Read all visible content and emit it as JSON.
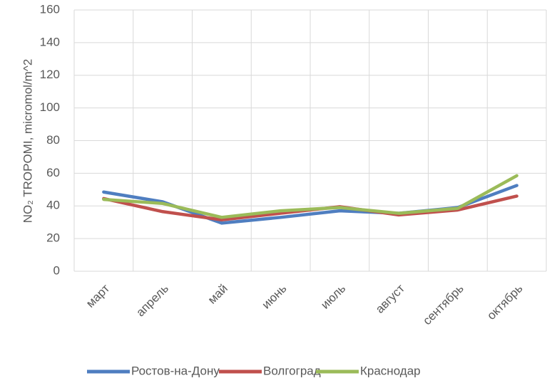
{
  "chart_data": {
    "type": "line",
    "y_label": "NO₂ TROPOMI, micromol/m^2",
    "categories": [
      "март",
      "апрель",
      "май",
      "июнь",
      "июль",
      "август",
      "сентябрь",
      "октябрь"
    ],
    "series": [
      {
        "name": "Ростов-на-Дону",
        "color": "#4f7ec0",
        "values": [
          48.5,
          42.5,
          29.5,
          33,
          37,
          35.5,
          39,
          52.5
        ]
      },
      {
        "name": "Волгоград",
        "color": "#c0504d",
        "values": [
          44.5,
          36.5,
          31.5,
          35.5,
          39.5,
          34.5,
          37.5,
          46
        ]
      },
      {
        "name": "Краснодар",
        "color": "#9bbb59",
        "values": [
          44,
          41.5,
          33,
          37,
          39,
          35.5,
          38.5,
          58.5
        ]
      }
    ],
    "ylim": [
      0,
      160
    ],
    "yticks": [
      0,
      20,
      40,
      60,
      80,
      100,
      120,
      140,
      160
    ],
    "grid": true,
    "legend": "bottom"
  }
}
